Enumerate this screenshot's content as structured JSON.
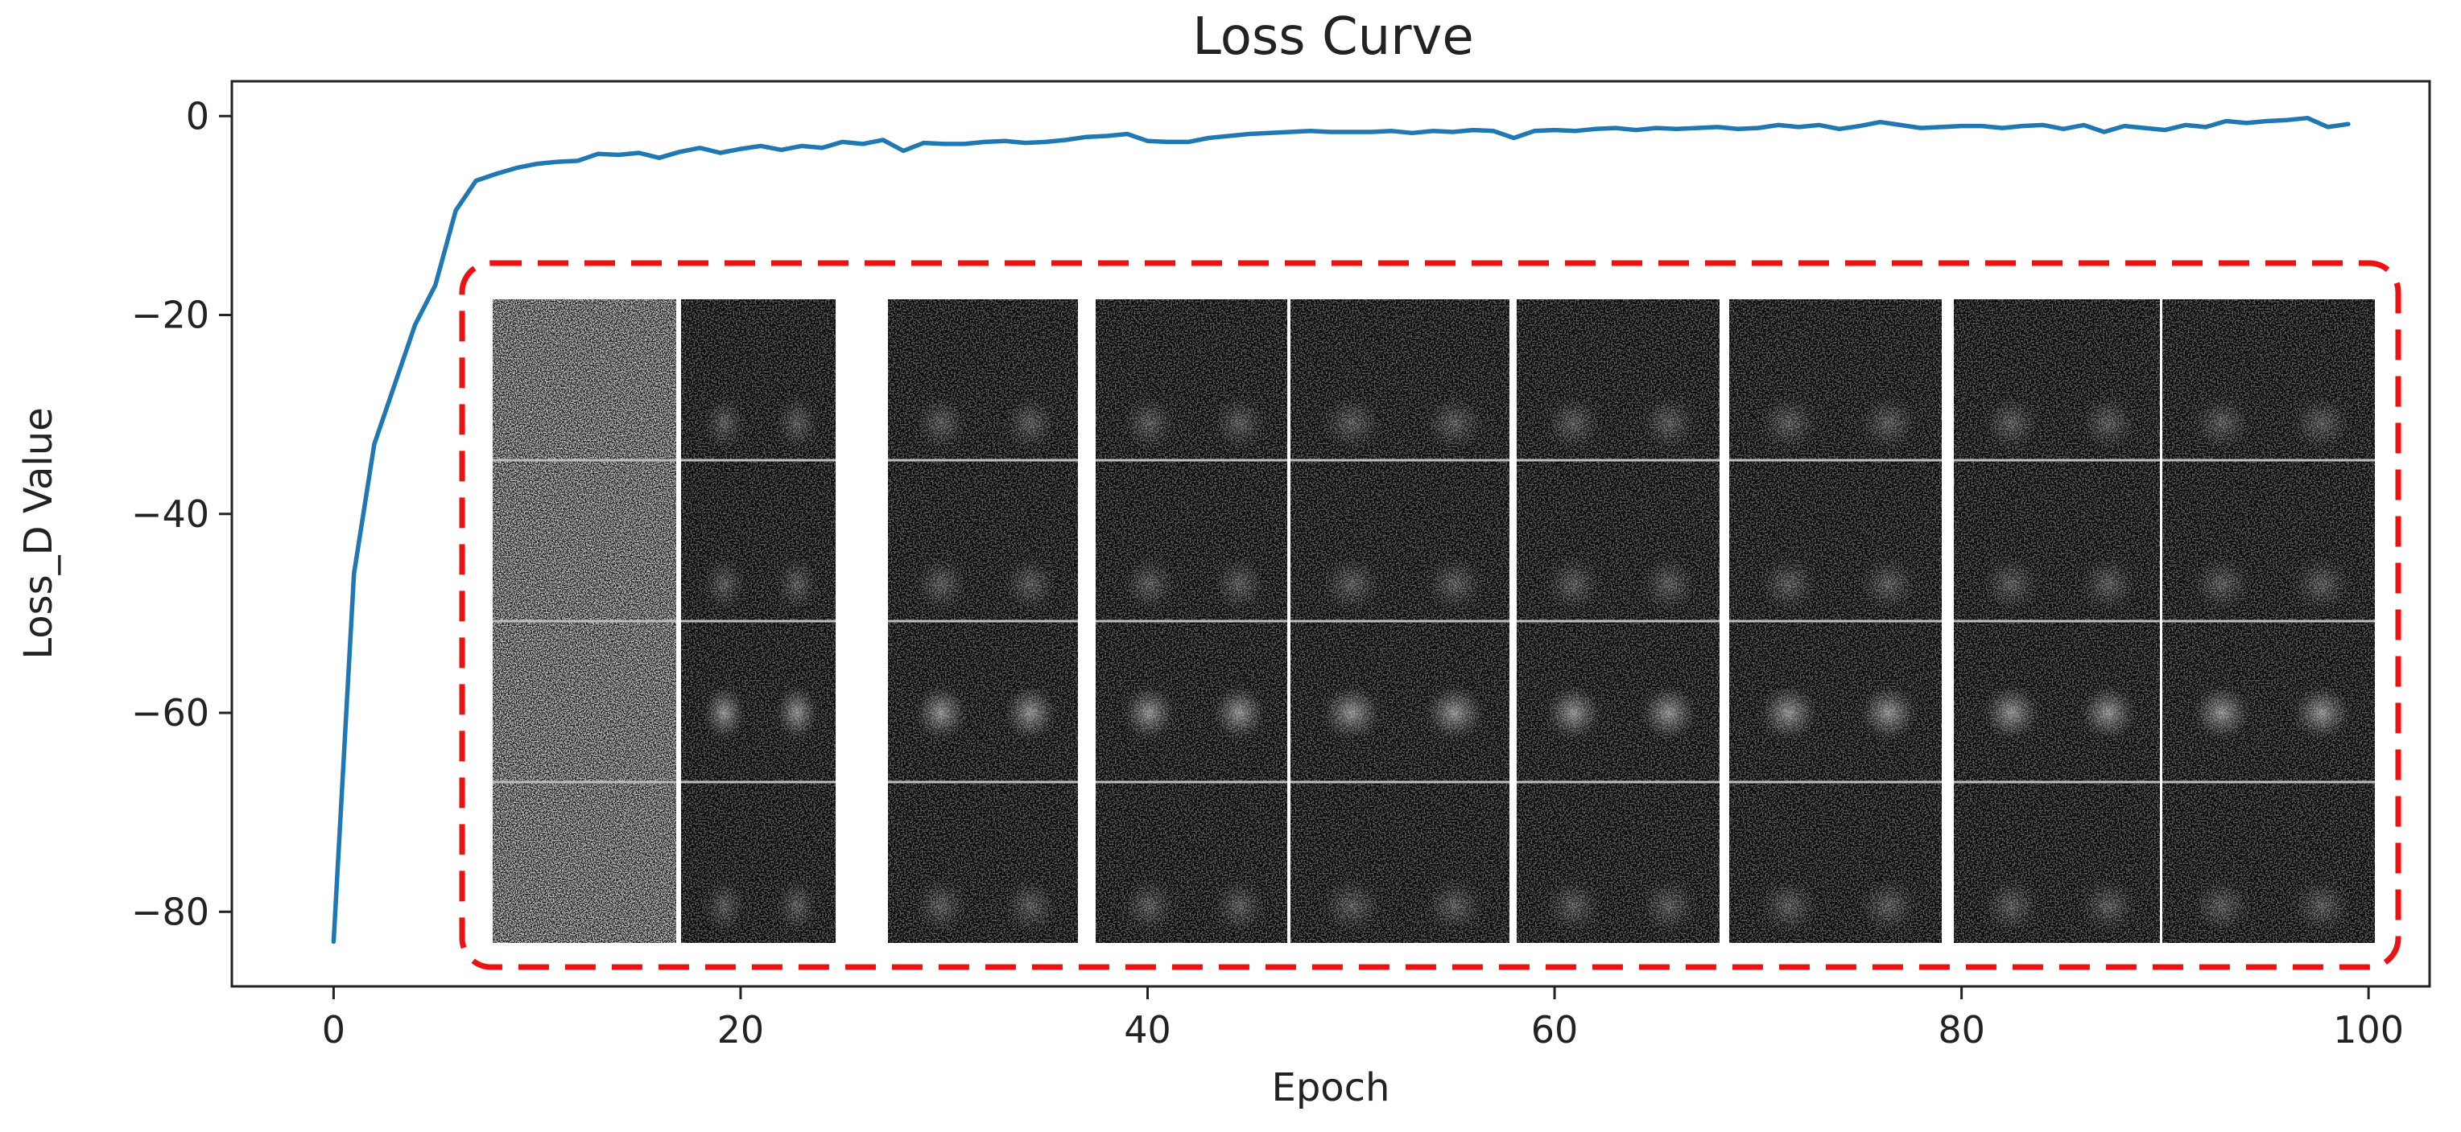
{
  "chart_data": {
    "type": "line",
    "title": "Loss Curve",
    "xlabel": "Epoch",
    "ylabel": "Loss_D Value",
    "xlim": [
      -5,
      103
    ],
    "ylim": [
      -87.5,
      3.5
    ],
    "xticks": [
      0,
      20,
      40,
      60,
      80,
      100
    ],
    "yticks": [
      0,
      -20,
      -40,
      -60,
      -80
    ],
    "xtick_labels": [
      "0",
      "20",
      "40",
      "60",
      "80",
      "100"
    ],
    "ytick_labels": [
      "0",
      "−20",
      "−40",
      "−60",
      "−80"
    ],
    "grid": false,
    "legend": "none",
    "series": [
      {
        "color": "#1f77b4",
        "x": [
          0,
          1,
          2,
          3,
          4,
          5,
          6,
          7,
          8,
          9,
          10,
          11,
          12,
          13,
          14,
          15,
          16,
          17,
          18,
          19,
          20,
          21,
          22,
          23,
          24,
          25,
          26,
          27,
          28,
          29,
          30,
          31,
          32,
          33,
          34,
          35,
          36,
          37,
          38,
          39,
          40,
          41,
          42,
          43,
          44,
          45,
          46,
          47,
          48,
          49,
          50,
          51,
          52,
          53,
          54,
          55,
          56,
          57,
          58,
          59,
          60,
          61,
          62,
          63,
          64,
          65,
          66,
          67,
          68,
          69,
          70,
          71,
          72,
          73,
          74,
          75,
          76,
          77,
          78,
          79,
          80,
          81,
          82,
          83,
          84,
          85,
          86,
          87,
          88,
          89,
          90,
          91,
          92,
          93,
          94,
          95,
          96,
          97,
          98,
          99
        ],
        "y": [
          -83,
          -46,
          -33,
          -27,
          -21,
          -17,
          -9.5,
          -6.5,
          -5.8,
          -5.2,
          -4.8,
          -4.6,
          -4.5,
          -3.8,
          -3.9,
          -3.7,
          -4.2,
          -3.6,
          -3.2,
          -3.7,
          -3.3,
          -3.0,
          -3.4,
          -3.0,
          -3.2,
          -2.6,
          -2.8,
          -2.4,
          -3.5,
          -2.7,
          -2.8,
          -2.8,
          -2.6,
          -2.5,
          -2.7,
          -2.6,
          -2.4,
          -2.1,
          -2.0,
          -1.8,
          -2.5,
          -2.6,
          -2.6,
          -2.2,
          -2.0,
          -1.8,
          -1.7,
          -1.6,
          -1.5,
          -1.6,
          -1.6,
          -1.6,
          -1.5,
          -1.7,
          -1.5,
          -1.6,
          -1.4,
          -1.5,
          -2.2,
          -1.5,
          -1.4,
          -1.5,
          -1.3,
          -1.2,
          -1.4,
          -1.2,
          -1.3,
          -1.2,
          -1.1,
          -1.3,
          -1.2,
          -0.9,
          -1.1,
          -0.9,
          -1.3,
          -1.0,
          -0.6,
          -0.9,
          -1.2,
          -1.1,
          -1.0,
          -1.0,
          -1.2,
          -1.0,
          -0.9,
          -1.3,
          -0.9,
          -1.6,
          -1.0,
          -1.2,
          -1.4,
          -0.9,
          -1.1,
          -0.5,
          -0.7,
          -0.5,
          -0.4,
          -0.2,
          -1.1,
          -0.8
        ]
      }
    ],
    "annotation": {
      "type": "dashed-rounded-box",
      "color": "#ee1111",
      "content": "grid of generated sample images over training epochs",
      "columns": 9,
      "rows": 4
    }
  }
}
